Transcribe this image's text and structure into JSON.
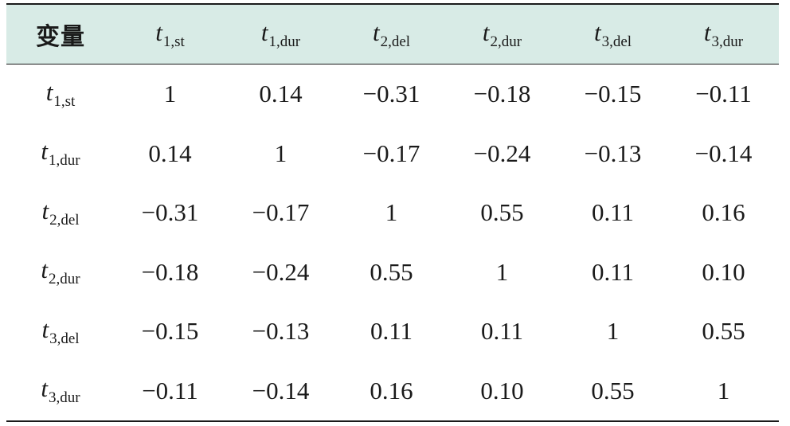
{
  "table": {
    "header_first": "变量",
    "var_symbol": "t",
    "columns": [
      {
        "sub": "1,st"
      },
      {
        "sub": "1,dur"
      },
      {
        "sub": "2,del"
      },
      {
        "sub": "2,dur"
      },
      {
        "sub": "3,del"
      },
      {
        "sub": "3,dur"
      }
    ],
    "rows": [
      {
        "sub": "1,st",
        "values": [
          "1",
          "0.14",
          "−0.31",
          "−0.18",
          "−0.15",
          "−0.11"
        ]
      },
      {
        "sub": "1,dur",
        "values": [
          "0.14",
          "1",
          "−0.17",
          "−0.24",
          "−0.13",
          "−0.14"
        ]
      },
      {
        "sub": "2,del",
        "values": [
          "−0.31",
          "−0.17",
          "1",
          "0.55",
          "0.11",
          "0.16"
        ]
      },
      {
        "sub": "2,dur",
        "values": [
          "−0.18",
          "−0.24",
          "0.55",
          "1",
          "0.11",
          "0.10"
        ]
      },
      {
        "sub": "3,del",
        "values": [
          "−0.15",
          "−0.13",
          "0.11",
          "0.11",
          "1",
          "0.55"
        ]
      },
      {
        "sub": "3,dur",
        "values": [
          "−0.11",
          "−0.14",
          "0.16",
          "0.10",
          "0.55",
          "1"
        ]
      }
    ]
  },
  "colors": {
    "header_bg": "#d8ebe6",
    "rule": "#1a1a1a",
    "text": "#1a1a1a"
  }
}
